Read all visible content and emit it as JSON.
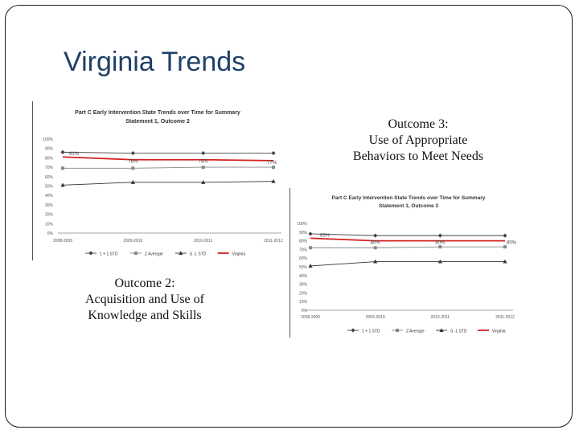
{
  "slide": {
    "title": "Virginia Trends",
    "captions": {
      "outcome2": [
        "Outcome 2:",
        "Acquisition and Use of",
        "Knowledge and Skills"
      ],
      "outcome3": [
        "Outcome 3:",
        "Use of Appropriate",
        "Behaviors to Meet Needs"
      ]
    }
  },
  "chart_data": [
    {
      "type": "line",
      "title": "Part C Early Intervention State Trends over Time for Summary Statement 1, Outcome 2",
      "categories": [
        "2008-2009",
        "2009-2010",
        "2010-2011",
        "2011-2012"
      ],
      "ylim": [
        0,
        100
      ],
      "yticks": [
        "0%",
        "10%",
        "20%",
        "30%",
        "40%",
        "50%",
        "60%",
        "70%",
        "80%",
        "90%",
        "100%"
      ],
      "grid": false,
      "legend_position": "bottom",
      "series": [
        {
          "name": "1 + 1 STD",
          "values": [
            86,
            85,
            85,
            85
          ],
          "color": "#444444",
          "marker": "diamond"
        },
        {
          "name": "Z Average",
          "values": [
            69,
            69,
            70,
            70
          ],
          "color": "#888888",
          "marker": "square"
        },
        {
          "name": "S -1 STD",
          "values": [
            51,
            54,
            54,
            55
          ],
          "color": "#333333",
          "marker": "triangle"
        },
        {
          "name": "Virginia",
          "values": [
            81,
            78,
            78,
            77
          ],
          "color": "#d42020",
          "marker": "none",
          "labels": [
            "81%",
            "78%",
            "78%",
            "77%"
          ]
        }
      ]
    },
    {
      "type": "line",
      "title": "Part C Early Intervention State Trends over Time for Summary Statement 1, Outcome 3",
      "categories": [
        "2008-2009",
        "2009-2010",
        "2010-2011",
        "2011-2012"
      ],
      "ylim": [
        0,
        100
      ],
      "yticks": [
        "0%",
        "10%",
        "20%",
        "30%",
        "40%",
        "50%",
        "60%",
        "70%",
        "80%",
        "90%",
        "100%"
      ],
      "grid": false,
      "legend_position": "bottom",
      "series": [
        {
          "name": "1 + 1 STD",
          "values": [
            88,
            86,
            86,
            86
          ],
          "color": "#444444",
          "marker": "diamond"
        },
        {
          "name": "Z Average",
          "values": [
            72,
            72,
            73,
            73
          ],
          "color": "#888888",
          "marker": "square"
        },
        {
          "name": "S -1 STD",
          "values": [
            51,
            56,
            56,
            56
          ],
          "color": "#333333",
          "marker": "triangle"
        },
        {
          "name": "Virginia",
          "values": [
            83,
            80,
            80,
            80
          ],
          "color": "#d42020",
          "marker": "none",
          "labels": [
            "83%",
            "80%",
            "80%",
            "80%"
          ]
        }
      ]
    }
  ]
}
